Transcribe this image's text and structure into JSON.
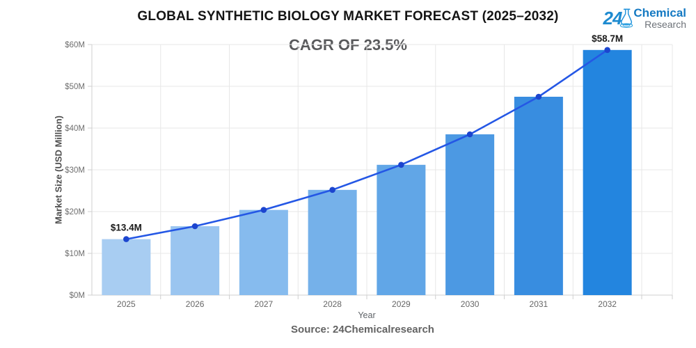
{
  "header": {
    "title": "GLOBAL SYNTHETIC BIOLOGY MARKET FORECAST (2025–2032)",
    "subtitle": "CAGR OF 23.5%"
  },
  "logo": {
    "number": "24",
    "word_primary": "Chemical",
    "word_secondary": "Research",
    "color_primary": "#1479c2",
    "color_secondary": "#6d7278"
  },
  "footer": {
    "source": "Source: 24Chemicalresearch"
  },
  "chart_data": {
    "type": "bar",
    "overlay": "line",
    "title": "GLOBAL SYNTHETIC BIOLOGY MARKET FORECAST (2025–2032)",
    "subtitle": "CAGR OF 23.5%",
    "categories": [
      "2025",
      "2026",
      "2027",
      "2028",
      "2029",
      "2030",
      "2031",
      "2032"
    ],
    "values": [
      13.4,
      16.5,
      20.4,
      25.2,
      31.2,
      38.5,
      47.5,
      58.7
    ],
    "unit": "USD Million",
    "xlabel": "Year",
    "ylabel": "Market Size (USD Million)",
    "ylim": [
      0,
      60
    ],
    "ytick_step": 10,
    "ytick_labels": [
      "$0M",
      "$10M",
      "$20M",
      "$30M",
      "$40M",
      "$50M",
      "$60M"
    ],
    "data_labels": {
      "first": "$13.4M",
      "last": "$58.7M"
    },
    "grid": true,
    "legend": "none",
    "bar_colors": [
      "#a8cdf2",
      "#9ac5f0",
      "#86bbee",
      "#75b1ea",
      "#61a6e7",
      "#4c99e3",
      "#388de0",
      "#2385df"
    ],
    "line_color": "#2457e5",
    "marker_color": "#1c45cf",
    "grid_color": "#e7e7e7",
    "axis_color": "#cfcfcf",
    "tick_label_color": "#6e6e6e",
    "category_label_color": "#666666",
    "data_label_color": "#1a1a1a"
  }
}
